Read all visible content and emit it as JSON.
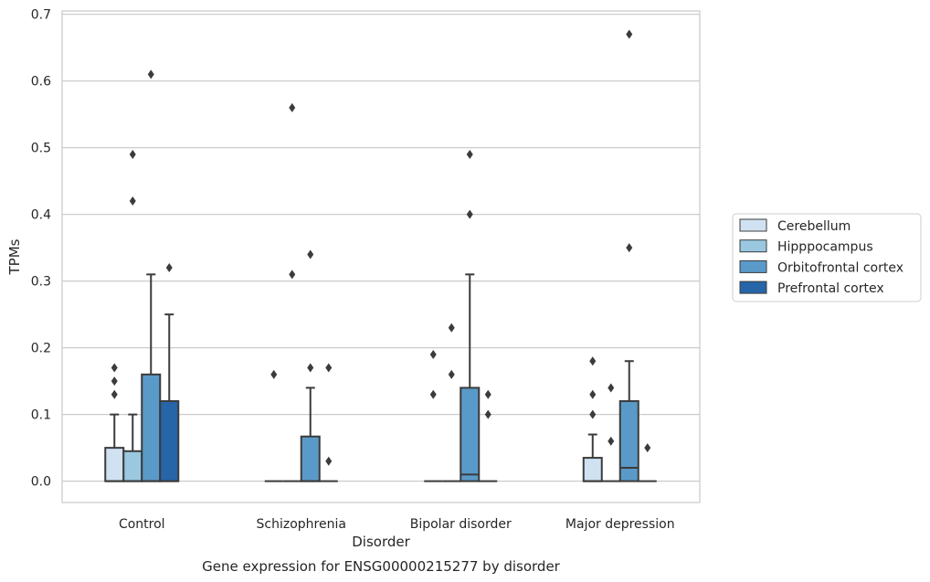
{
  "chart_data": {
    "type": "box",
    "caption": "Gene expression for ENSG00000215277 by disorder",
    "xlabel": "Disorder",
    "ylabel": "TPMs",
    "ylim": [
      -0.032,
      0.705
    ],
    "yticks": [
      0.0,
      0.1,
      0.2,
      0.3,
      0.4,
      0.5,
      0.6,
      0.7
    ],
    "ytick_labels": [
      "0.0",
      "0.1",
      "0.2",
      "0.3",
      "0.4",
      "0.5",
      "0.6",
      "0.7"
    ],
    "grid": "horizontal",
    "legend_position": "right",
    "categories": [
      "Control",
      "Schizophrenia",
      "Bipolar disorder",
      "Major depression"
    ],
    "series": [
      {
        "name": "Cerebellum",
        "color": "#d0e1f2",
        "boxes": [
          {
            "q1": 0.0,
            "median": 0.0,
            "q3": 0.05,
            "whisker_low": 0.0,
            "whisker_high": 0.1,
            "outliers": [
              0.13,
              0.15,
              0.17
            ]
          },
          {
            "q1": 0.0,
            "median": 0.0,
            "q3": 0.0,
            "whisker_low": 0.0,
            "whisker_high": 0.0,
            "outliers": [
              0.16
            ]
          },
          {
            "q1": 0.0,
            "median": 0.0,
            "q3": 0.0,
            "whisker_low": 0.0,
            "whisker_high": 0.0,
            "outliers": [
              0.13,
              0.19
            ]
          },
          {
            "q1": 0.0,
            "median": 0.0,
            "q3": 0.035,
            "whisker_low": 0.0,
            "whisker_high": 0.07,
            "outliers": [
              0.1,
              0.13,
              0.18
            ]
          }
        ]
      },
      {
        "name": "Hipppocampus",
        "color": "#9ac8e0",
        "boxes": [
          {
            "q1": 0.0,
            "median": 0.0,
            "q3": 0.045,
            "whisker_low": 0.0,
            "whisker_high": 0.1,
            "outliers": [
              0.42,
              0.49
            ]
          },
          {
            "q1": 0.0,
            "median": 0.0,
            "q3": 0.0,
            "whisker_low": 0.0,
            "whisker_high": 0.0,
            "outliers": [
              0.31,
              0.56
            ]
          },
          {
            "q1": 0.0,
            "median": 0.0,
            "q3": 0.0,
            "whisker_low": 0.0,
            "whisker_high": 0.0,
            "outliers": [
              0.16,
              0.23
            ]
          },
          {
            "q1": 0.0,
            "median": 0.0,
            "q3": 0.0,
            "whisker_low": 0.0,
            "whisker_high": 0.0,
            "outliers": [
              0.06,
              0.14
            ]
          }
        ]
      },
      {
        "name": "Orbitofrontal cortex",
        "color": "#5a9ac8",
        "boxes": [
          {
            "q1": 0.0,
            "median": 0.0,
            "q3": 0.16,
            "whisker_low": 0.0,
            "whisker_high": 0.31,
            "outliers": [
              0.61
            ]
          },
          {
            "q1": 0.0,
            "median": 0.0,
            "q3": 0.067,
            "whisker_low": 0.0,
            "whisker_high": 0.14,
            "outliers": [
              0.17,
              0.34
            ]
          },
          {
            "q1": 0.0,
            "median": 0.01,
            "q3": 0.14,
            "whisker_low": 0.0,
            "whisker_high": 0.31,
            "outliers": [
              0.4,
              0.49
            ]
          },
          {
            "q1": 0.0,
            "median": 0.02,
            "q3": 0.12,
            "whisker_low": 0.0,
            "whisker_high": 0.18,
            "outliers": [
              0.35,
              0.67
            ]
          }
        ]
      },
      {
        "name": "Prefrontal cortex",
        "color": "#2565a8",
        "boxes": [
          {
            "q1": 0.0,
            "median": 0.0,
            "q3": 0.12,
            "whisker_low": 0.0,
            "whisker_high": 0.25,
            "outliers": [
              0.32
            ]
          },
          {
            "q1": 0.0,
            "median": 0.0,
            "q3": 0.0,
            "whisker_low": 0.0,
            "whisker_high": 0.0,
            "outliers": [
              0.03,
              0.17
            ]
          },
          {
            "q1": 0.0,
            "median": 0.0,
            "q3": 0.0,
            "whisker_low": 0.0,
            "whisker_high": 0.0,
            "outliers": [
              0.1,
              0.13
            ]
          },
          {
            "q1": 0.0,
            "median": 0.0,
            "q3": 0.0,
            "whisker_low": 0.0,
            "whisker_high": 0.0,
            "outliers": [
              0.05
            ]
          }
        ]
      }
    ]
  }
}
